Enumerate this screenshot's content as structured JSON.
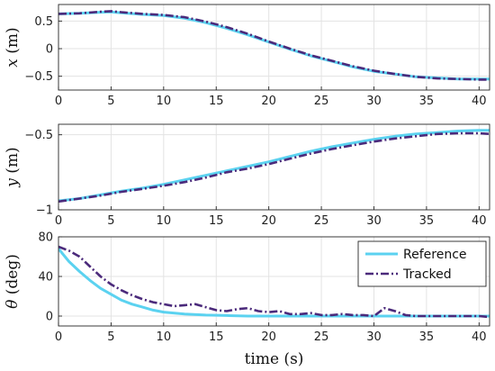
{
  "chart_data": [
    {
      "type": "line",
      "ylabel": "x (m)",
      "xlabel": "",
      "xlim": [
        0,
        41
      ],
      "ylim": [
        -0.75,
        0.8
      ],
      "xticks": [
        0,
        5,
        10,
        15,
        20,
        25,
        30,
        35,
        40
      ],
      "yticks": [
        0.5,
        0,
        -0.5
      ],
      "ytick_labels": [
        "0.5",
        "0",
        "−0.5"
      ],
      "grid": true,
      "series": [
        {
          "role": "reference",
          "color": "#5bd2f0",
          "x": [
            0,
            2,
            4,
            5,
            6,
            8,
            10,
            12,
            14,
            16,
            18,
            20,
            22,
            24,
            26,
            28,
            30,
            32,
            34,
            36,
            38,
            40,
            41
          ],
          "y": [
            0.63,
            0.64,
            0.66,
            0.665,
            0.65,
            0.62,
            0.6,
            0.55,
            0.47,
            0.37,
            0.25,
            0.12,
            -0.01,
            -0.13,
            -0.23,
            -0.33,
            -0.41,
            -0.46,
            -0.51,
            -0.53,
            -0.55,
            -0.55,
            -0.55
          ]
        },
        {
          "role": "tracked",
          "color": "#4b2a7b",
          "x": [
            0,
            2,
            4,
            5,
            6,
            8,
            10,
            12,
            14,
            16,
            18,
            20,
            22,
            24,
            26,
            28,
            30,
            32,
            34,
            36,
            38,
            40,
            41
          ],
          "y": [
            0.63,
            0.64,
            0.67,
            0.68,
            0.66,
            0.63,
            0.61,
            0.57,
            0.49,
            0.39,
            0.27,
            0.13,
            0.0,
            -0.12,
            -0.22,
            -0.32,
            -0.4,
            -0.46,
            -0.51,
            -0.54,
            -0.55,
            -0.56,
            -0.56
          ]
        }
      ]
    },
    {
      "type": "line",
      "ylabel": "y (m)",
      "xlabel": "",
      "xlim": [
        0,
        41
      ],
      "ylim": [
        -1.0,
        -0.43
      ],
      "xticks": [
        0,
        5,
        10,
        15,
        20,
        25,
        30,
        35,
        40
      ],
      "yticks": [
        -0.5,
        -1
      ],
      "ytick_labels": [
        "−0.5",
        "−1"
      ],
      "grid": true,
      "series": [
        {
          "role": "reference",
          "color": "#5bd2f0",
          "x": [
            0,
            2,
            4,
            6,
            8,
            10,
            12,
            14,
            16,
            18,
            20,
            22,
            24,
            26,
            28,
            30,
            32,
            34,
            36,
            38,
            40,
            41
          ],
          "y": [
            -0.94,
            -0.925,
            -0.9,
            -0.875,
            -0.855,
            -0.83,
            -0.8,
            -0.77,
            -0.74,
            -0.71,
            -0.68,
            -0.645,
            -0.61,
            -0.58,
            -0.555,
            -0.53,
            -0.51,
            -0.495,
            -0.485,
            -0.475,
            -0.47,
            -0.47
          ]
        },
        {
          "role": "tracked",
          "color": "#4b2a7b",
          "x": [
            0,
            2,
            4,
            6,
            8,
            10,
            12,
            14,
            16,
            18,
            20,
            22,
            24,
            26,
            28,
            30,
            32,
            34,
            36,
            38,
            40,
            41
          ],
          "y": [
            -0.945,
            -0.925,
            -0.905,
            -0.88,
            -0.86,
            -0.84,
            -0.815,
            -0.785,
            -0.75,
            -0.725,
            -0.695,
            -0.66,
            -0.625,
            -0.595,
            -0.57,
            -0.545,
            -0.525,
            -0.51,
            -0.495,
            -0.49,
            -0.49,
            -0.495
          ]
        }
      ]
    },
    {
      "type": "line",
      "ylabel": "θ (deg)",
      "xlabel": "time (s)",
      "xlim": [
        0,
        41
      ],
      "ylim": [
        -10,
        80
      ],
      "xticks": [
        0,
        5,
        10,
        15,
        20,
        25,
        30,
        35,
        40
      ],
      "yticks": [
        80,
        40,
        0
      ],
      "ytick_labels": [
        "80",
        "40",
        "0"
      ],
      "grid": true,
      "legend": {
        "position": "top-right",
        "entries": [
          "Reference",
          "Tracked"
        ]
      },
      "series": [
        {
          "name": "Reference",
          "color": "#5bd2f0",
          "x": [
            0,
            1,
            2,
            3,
            4,
            5,
            6,
            7,
            8,
            9,
            10,
            12,
            14,
            16,
            18,
            20,
            22,
            25,
            30,
            35,
            41
          ],
          "y": [
            68,
            55,
            45,
            36,
            28,
            22,
            16,
            12,
            9,
            6,
            4,
            2,
            1,
            0.5,
            0,
            0,
            0,
            0,
            0,
            0,
            0
          ]
        },
        {
          "name": "Tracked",
          "color": "#4b2a7b",
          "x": [
            0,
            1,
            2,
            3,
            4,
            5,
            6,
            7,
            8,
            9,
            10,
            11,
            12,
            13,
            14,
            15,
            16,
            17,
            18,
            19,
            20,
            21,
            22,
            23,
            24,
            25,
            26,
            27,
            28,
            29,
            30,
            31,
            32,
            33,
            34,
            35,
            36,
            37,
            38,
            39,
            40,
            41
          ],
          "y": [
            70,
            66,
            60,
            50,
            40,
            32,
            26,
            21,
            17,
            14,
            12,
            10,
            11,
            12,
            9,
            6,
            5,
            7,
            8,
            5,
            4,
            5,
            2,
            2,
            3,
            1,
            1,
            2,
            1,
            1,
            0,
            8,
            5,
            1,
            0,
            0,
            0,
            0,
            0,
            0,
            0,
            -1
          ]
        }
      ]
    }
  ]
}
